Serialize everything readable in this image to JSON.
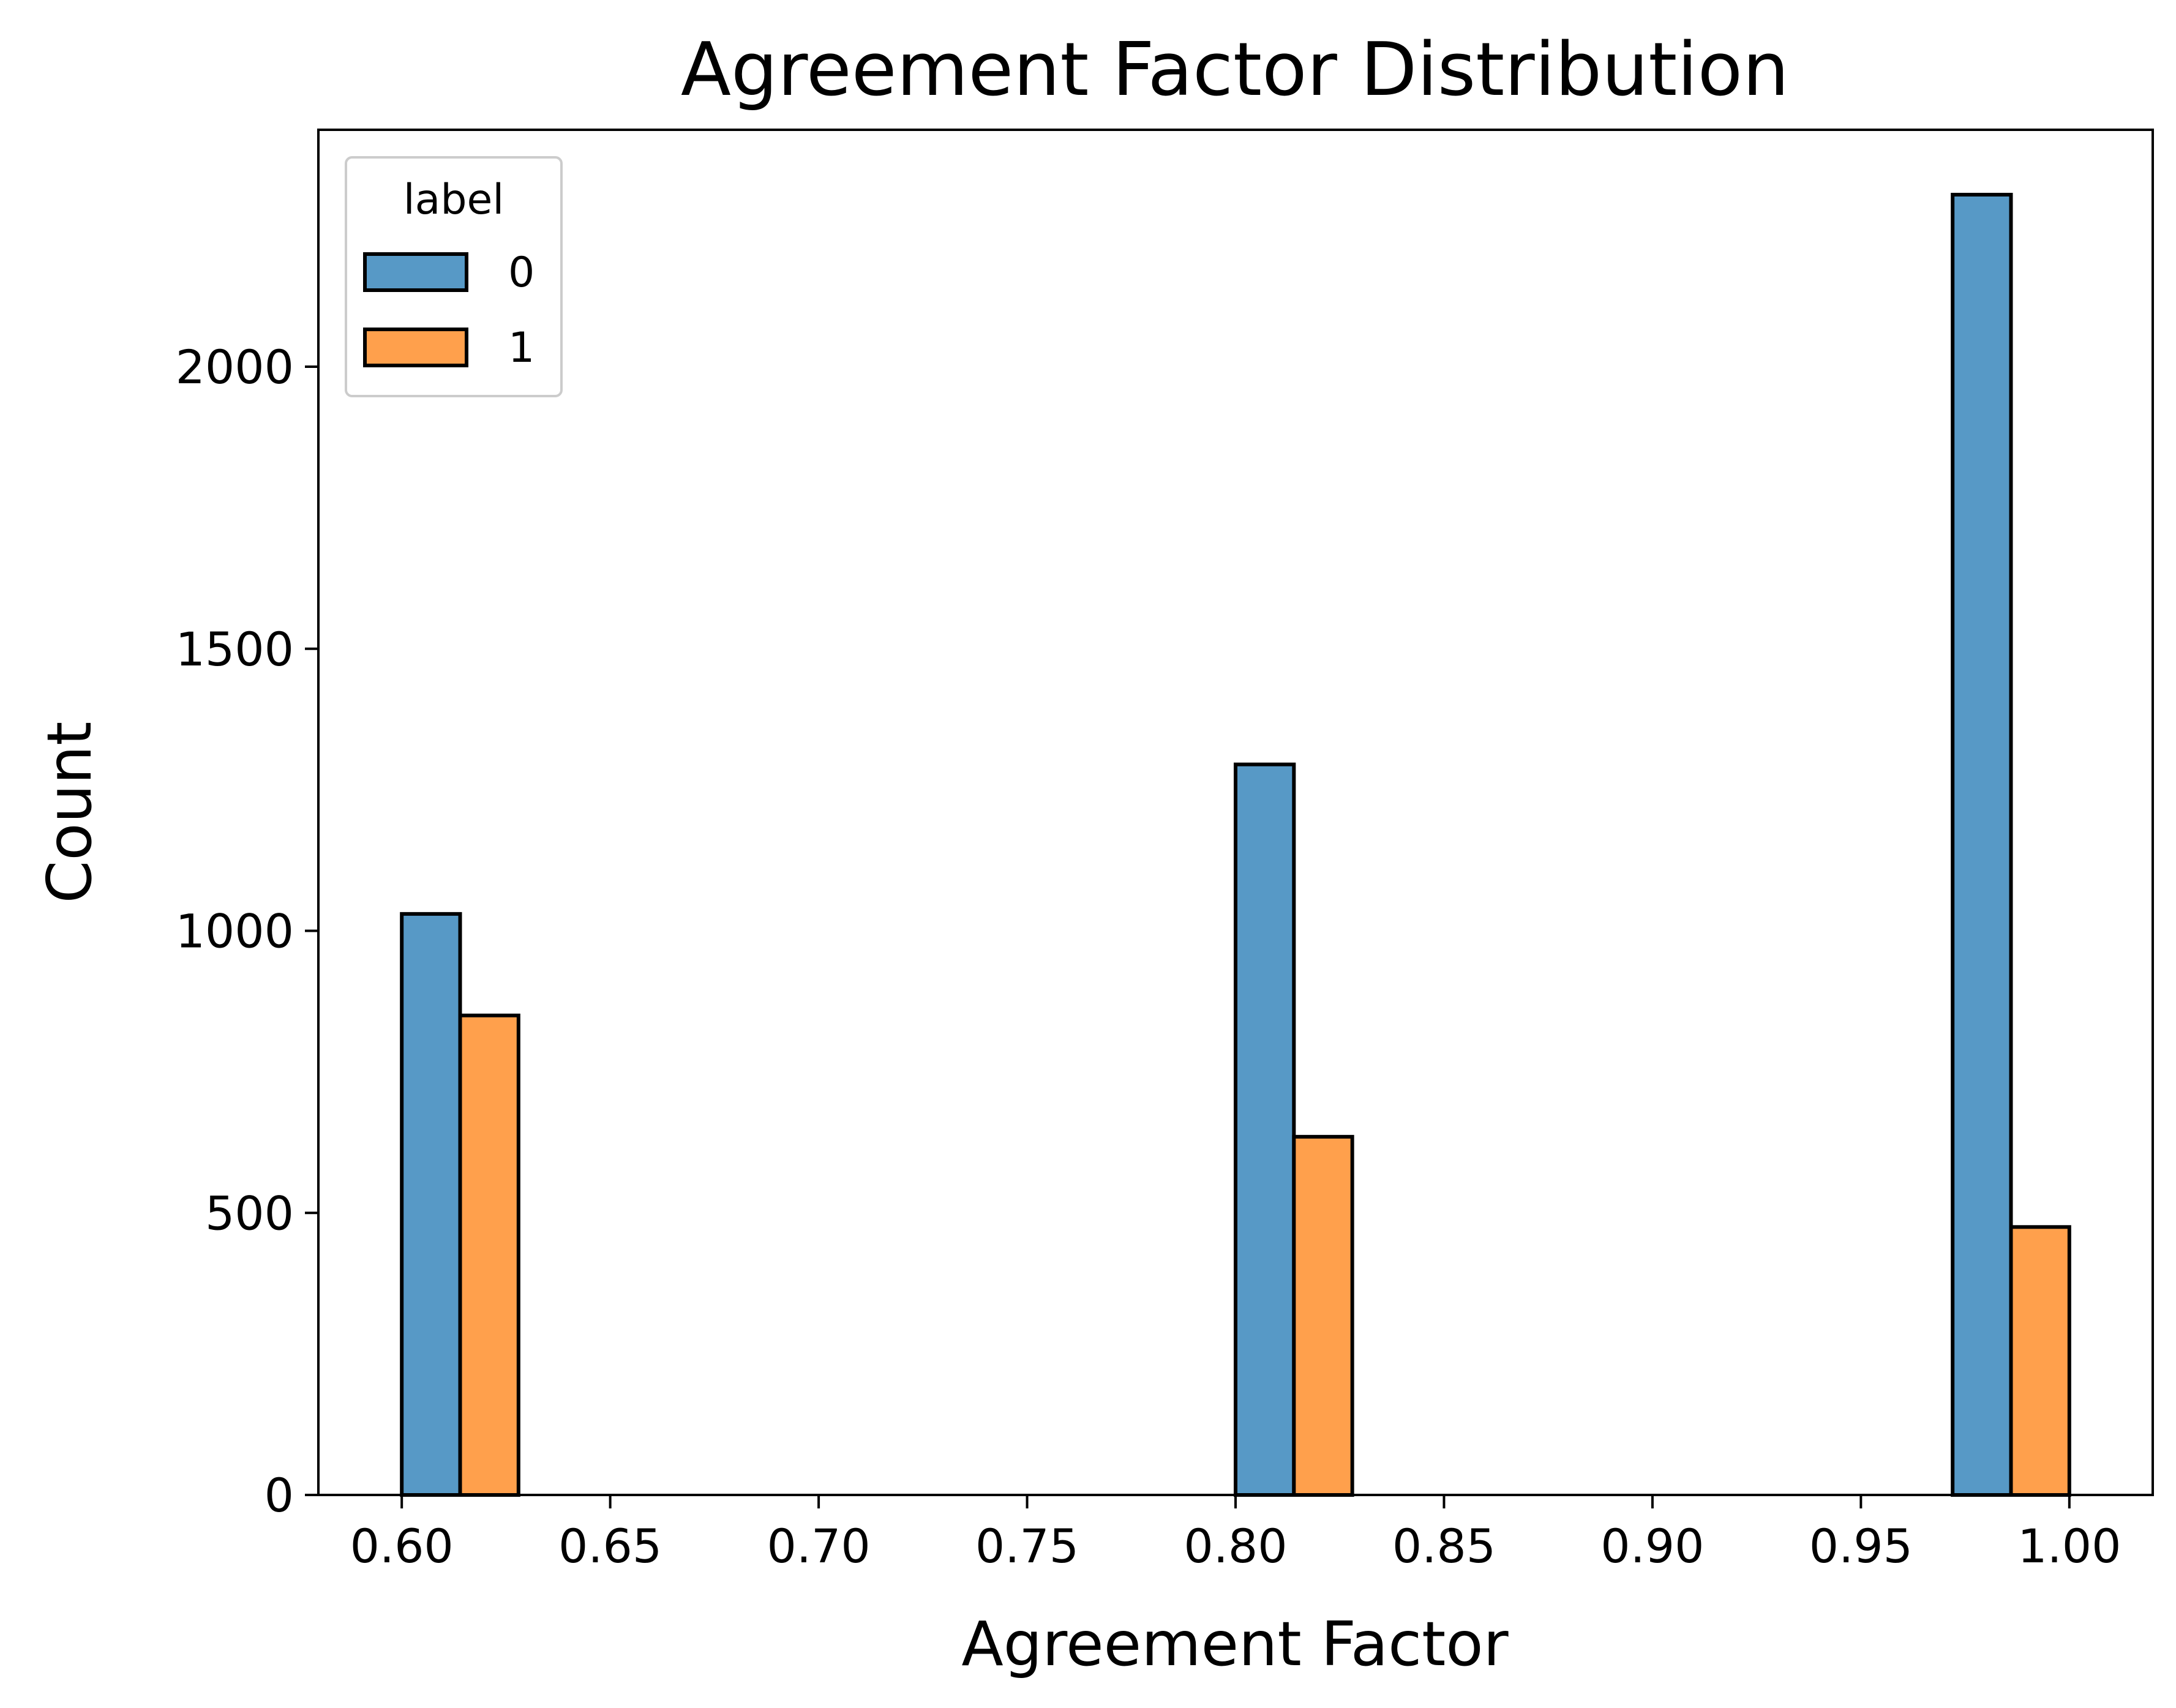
{
  "chart_data": {
    "type": "bar",
    "title": "Agreement Factor Distribution",
    "xlabel": "Agreement Factor",
    "ylabel": "Count",
    "xlim": [
      0.58,
      1.02
    ],
    "ylim": [
      0,
      2420
    ],
    "xticks": [
      "0.60",
      "0.65",
      "0.70",
      "0.75",
      "0.80",
      "0.85",
      "0.90",
      "0.95",
      "1.00"
    ],
    "xtick_values": [
      0.6,
      0.65,
      0.7,
      0.75,
      0.8,
      0.85,
      0.9,
      0.95,
      1.0
    ],
    "yticks": [
      "0",
      "500",
      "1000",
      "1500",
      "2000"
    ],
    "ytick_values": [
      0,
      500,
      1000,
      1500,
      2000
    ],
    "grid": false,
    "legend": {
      "title": "label",
      "position": "top-left"
    },
    "series": [
      {
        "name": "0",
        "color": "#5799c6",
        "bars": [
          {
            "x0": 0.6,
            "x1": 0.614,
            "value": 1030
          },
          {
            "x0": 0.8,
            "x1": 0.814,
            "value": 1295
          },
          {
            "x0": 0.972,
            "x1": 0.986,
            "value": 2305
          }
        ]
      },
      {
        "name": "1",
        "color": "#ffa04c",
        "bars": [
          {
            "x0": 0.614,
            "x1": 0.628,
            "value": 850
          },
          {
            "x0": 0.814,
            "x1": 0.828,
            "value": 635
          },
          {
            "x0": 0.986,
            "x1": 1.0,
            "value": 475
          }
        ]
      }
    ]
  }
}
